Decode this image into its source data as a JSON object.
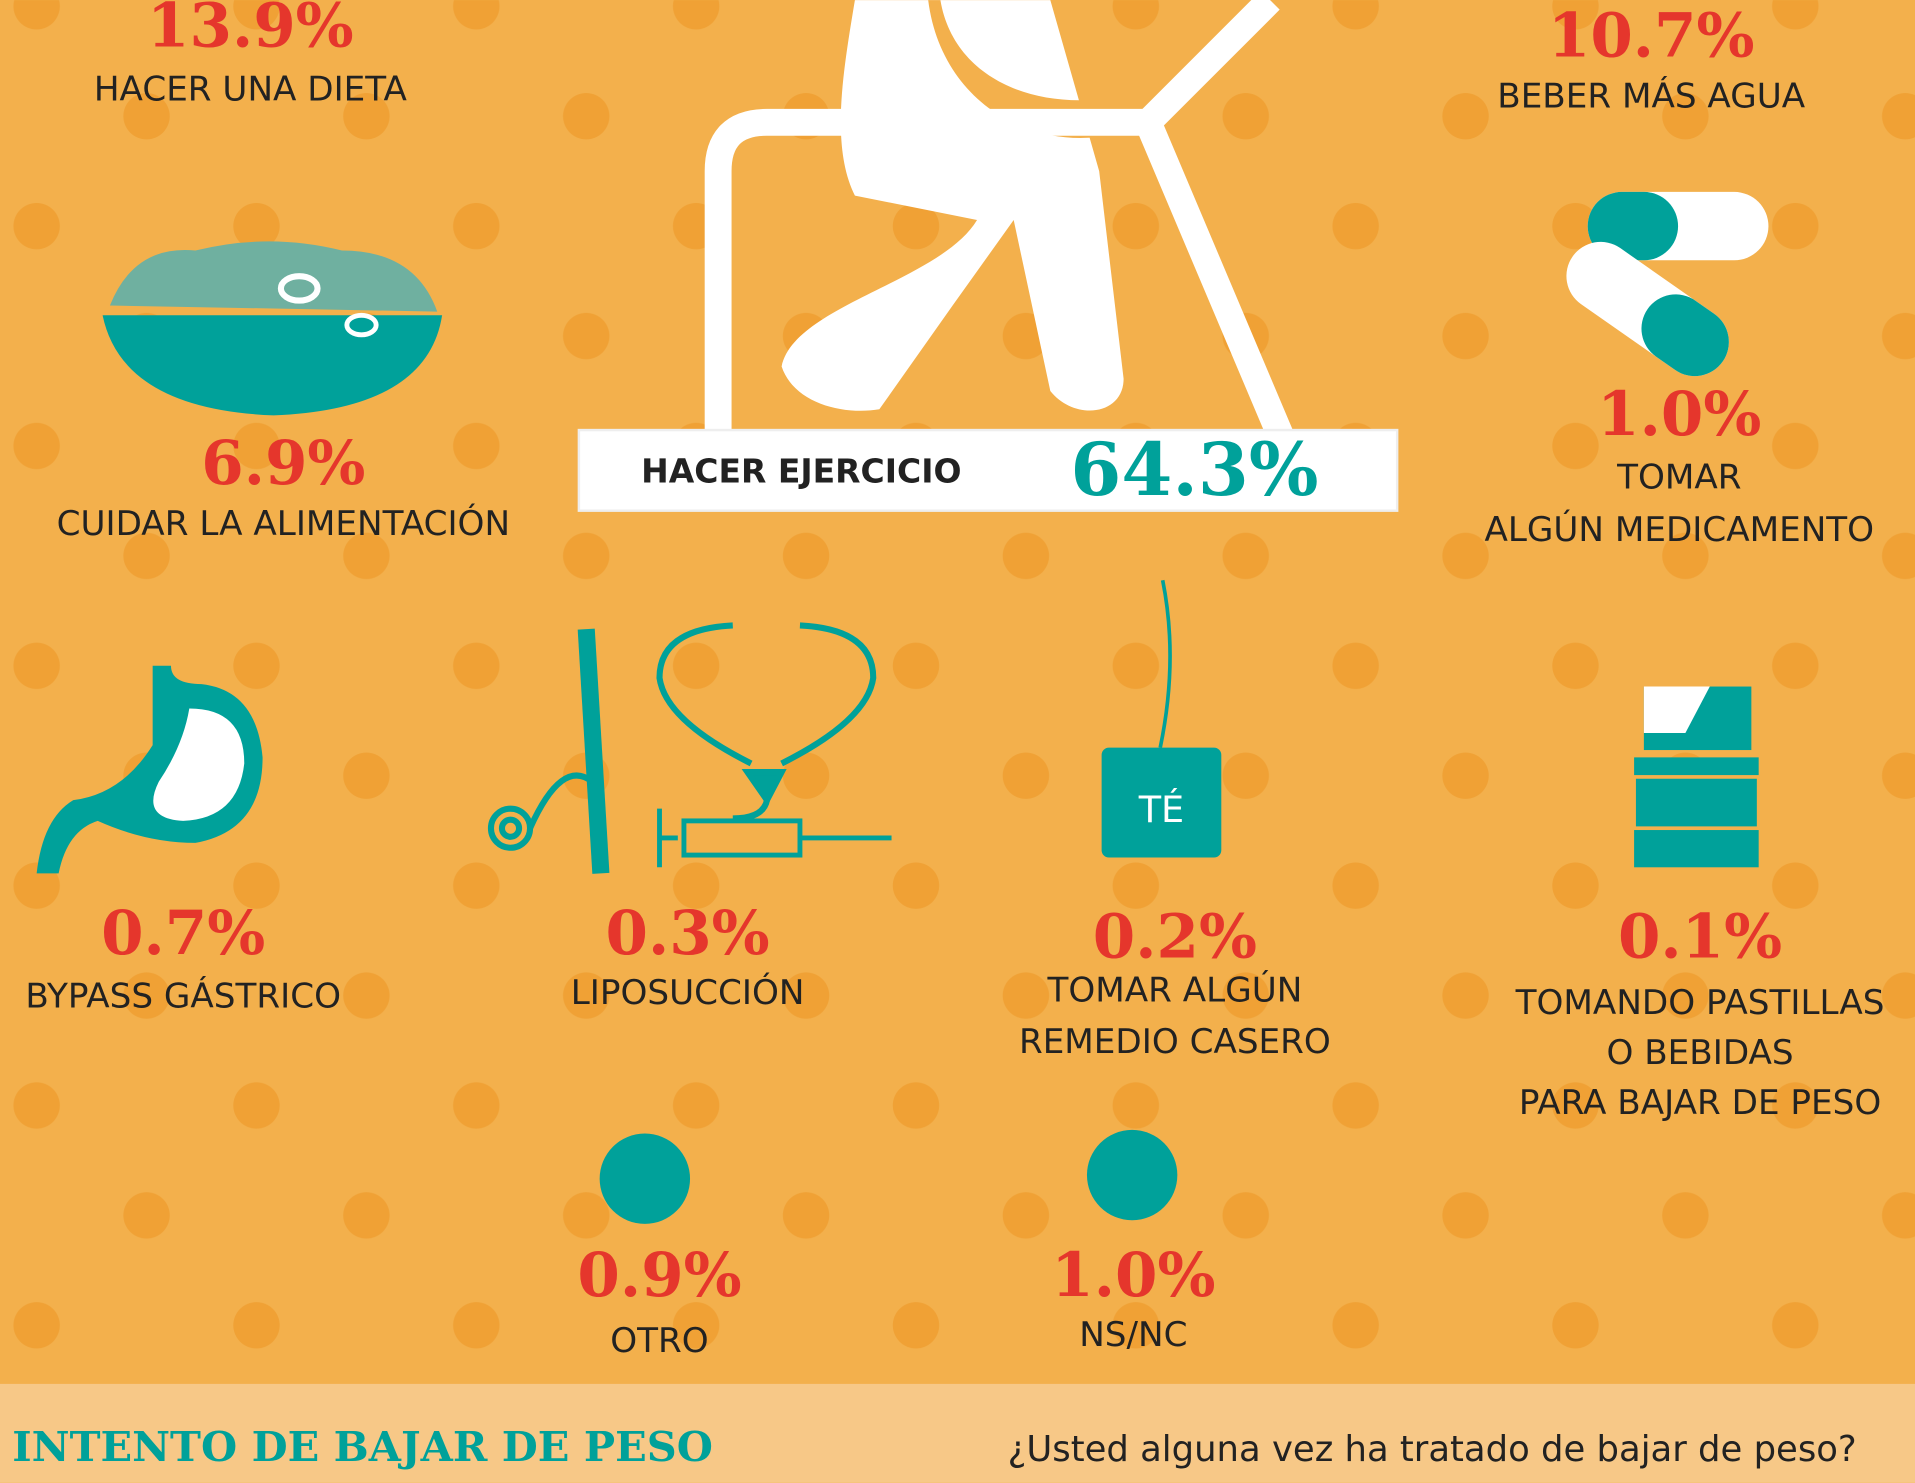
{
  "items": [
    {
      "value": "13.9%",
      "label": [
        "HACER UNA DIETA"
      ]
    },
    {
      "value": "10.7%",
      "label": [
        "BEBER MÁS AGUA"
      ]
    },
    {
      "value": "6.9%",
      "label": [
        "CUIDAR LA ALIMENTACIÓN"
      ]
    },
    {
      "value": "1.0%",
      "label": [
        "TOMAR",
        "ALGÚN MEDICAMENTO"
      ]
    },
    {
      "value": "0.7%",
      "label": [
        "BYPASS GÁSTRICO"
      ]
    },
    {
      "value": "0.3%",
      "label": [
        "LIPOSUCCIÓN"
      ]
    },
    {
      "value": "0.2%",
      "label": [
        "TOMAR ALGÚN",
        "REMEDIO CASERO"
      ]
    },
    {
      "value": "0.1%",
      "label": [
        "TOMANDO PASTILLAS",
        "O BEBIDAS",
        "PARA BAJAR DE PESO"
      ]
    },
    {
      "value": "0.9%",
      "label": [
        "OTRO"
      ]
    },
    {
      "value": "1.0%",
      "label": [
        "NS/NC"
      ]
    }
  ],
  "exercise": {
    "label": "HACER EJERCICIO",
    "value": "64.3%"
  },
  "tea_tag": "TÉ",
  "footer": {
    "title": "INTENTO DE BAJAR DE PESO",
    "question": "¿Usted alguna vez ha tratado de bajar de peso?"
  }
}
